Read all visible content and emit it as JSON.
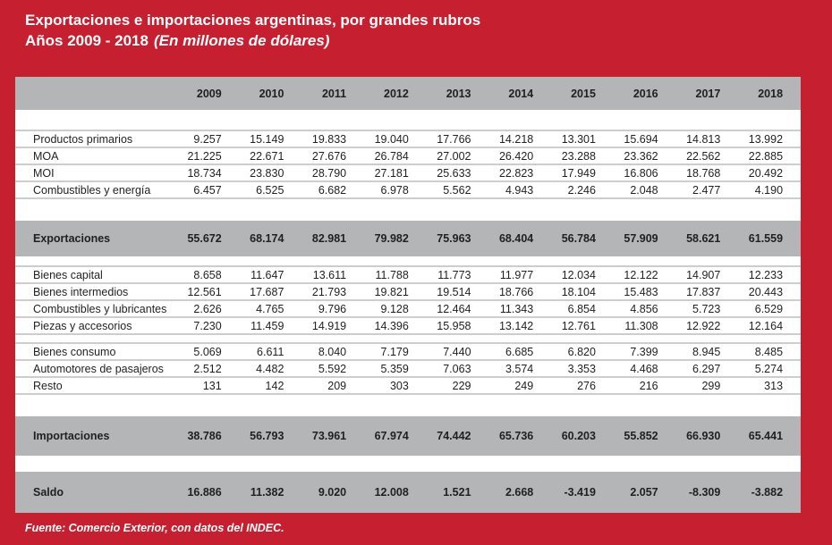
{
  "header": {
    "title": "Exportaciones e importaciones argentinas, por grandes rubros",
    "subtitle_years": "Años 2009 - 2018",
    "subtitle_unit": "(En millones de dólares)"
  },
  "footer": {
    "source": "Fuente: Comercio Exterior, con datos del INDEC."
  },
  "colors": {
    "page_red": "#c51f30",
    "band_gray": "#b3b5b7",
    "divider_gray": "#cbcdce",
    "text_dark": "#211f20",
    "text_white": "#ffffff"
  },
  "table": {
    "years": [
      "2009",
      "2010",
      "2011",
      "2012",
      "2013",
      "2014",
      "2015",
      "2016",
      "2017",
      "2018"
    ],
    "sections": [
      {
        "kind": "data",
        "rows": [
          {
            "label": "Productos primarios",
            "values": [
              "9.257",
              "15.149",
              "19.833",
              "19.040",
              "17.766",
              "14.218",
              "13.301",
              "15.694",
              "14.813",
              "13.992"
            ]
          },
          {
            "label": "MOA",
            "values": [
              "21.225",
              "22.671",
              "27.676",
              "26.784",
              "27.002",
              "26.420",
              "23.288",
              "23.362",
              "22.562",
              "22.885"
            ]
          },
          {
            "label": "MOI",
            "values": [
              "18.734",
              "23.830",
              "28.790",
              "27.181",
              "25.633",
              "22.823",
              "17.949",
              "16.806",
              "18.768",
              "20.492"
            ]
          },
          {
            "label": "Combustibles y energía",
            "values": [
              "6.457",
              "6.525",
              "6.682",
              "6.978",
              "5.562",
              "4.943",
              "2.246",
              "2.048",
              "2.477",
              "4.190"
            ]
          }
        ]
      },
      {
        "kind": "band",
        "label": "Exportaciones",
        "values": [
          "55.672",
          "68.174",
          "82.981",
          "79.982",
          "75.963",
          "68.404",
          "56.784",
          "57.909",
          "58.621",
          "61.559"
        ]
      },
      {
        "kind": "data",
        "rows": [
          {
            "label": "Bienes capital",
            "values": [
              "8.658",
              "11.647",
              "13.611",
              "11.788",
              "11.773",
              "11.977",
              "12.034",
              "12.122",
              "14.907",
              "12.233"
            ]
          },
          {
            "label": "Bienes intermedios",
            "values": [
              "12.561",
              "17.687",
              "21.793",
              "19.821",
              "19.514",
              "18.766",
              "18.104",
              "15.483",
              "17.837",
              "20.443"
            ]
          },
          {
            "label": "Combustibles y lubricantes",
            "values": [
              "2.626",
              "4.765",
              "9.796",
              "9.128",
              "12.464",
              "11.343",
              "6.854",
              "4.856",
              "5.723",
              "6.529"
            ]
          },
          {
            "label": "Piezas y accesorios",
            "values": [
              "7.230",
              "11.459",
              "14.919",
              "14.396",
              "15.958",
              "13.142",
              "12.761",
              "11.308",
              "12.922",
              "12.164"
            ]
          }
        ]
      },
      {
        "kind": "data",
        "rows": [
          {
            "label": "Bienes consumo",
            "values": [
              "5.069",
              "6.611",
              "8.040",
              "7.179",
              "7.440",
              "6.685",
              "6.820",
              "7.399",
              "8.945",
              "8.485"
            ]
          },
          {
            "label": "Automotores de pasajeros",
            "values": [
              "2.512",
              "4.482",
              "5.592",
              "5.359",
              "7.063",
              "3.574",
              "3.353",
              "4.468",
              "6.297",
              "5.274"
            ]
          },
          {
            "label": "Resto",
            "values": [
              "131",
              "142",
              "209",
              "303",
              "229",
              "249",
              "276",
              "216",
              "299",
              "313"
            ]
          }
        ]
      },
      {
        "kind": "band",
        "label": "Importaciones",
        "values": [
          "38.786",
          "56.793",
          "73.961",
          "67.974",
          "74.442",
          "65.736",
          "60.203",
          "55.852",
          "66.930",
          "65.441"
        ]
      },
      {
        "kind": "band",
        "label": "Saldo",
        "values": [
          "16.886",
          "11.382",
          "9.020",
          "12.008",
          "1.521",
          "2.668",
          "-3.419",
          "2.057",
          "-8.309",
          "-3.882"
        ]
      }
    ]
  }
}
